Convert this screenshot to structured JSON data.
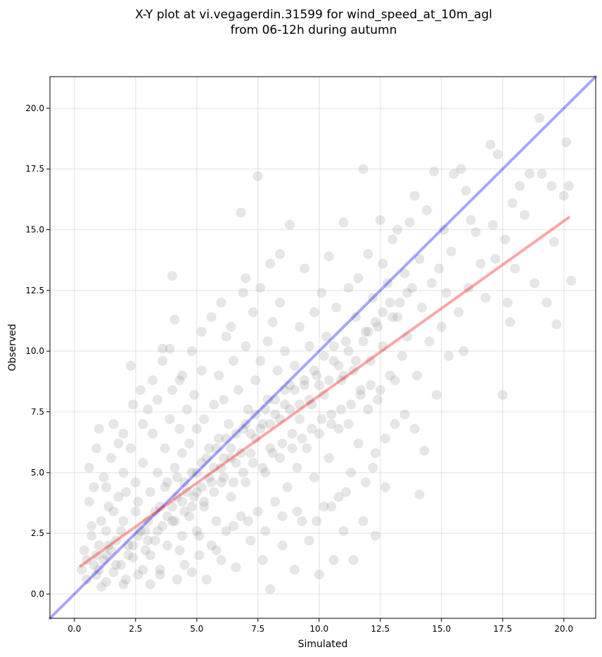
{
  "chart_data": {
    "type": "scatter",
    "title_line1": "X-Y plot at vi.vegagerdin.31599 for wind_speed_at_10m_agl",
    "title_line2": "from 06-12h during autumn",
    "xlabel": "Simulated",
    "ylabel": "Observed",
    "xlim": [
      -1.0,
      21.3
    ],
    "ylim": [
      -1.0,
      21.3
    ],
    "xticks": [
      0.0,
      2.5,
      5.0,
      7.5,
      10.0,
      12.5,
      15.0,
      17.5,
      20.0
    ],
    "yticks": [
      0.0,
      2.5,
      5.0,
      7.5,
      10.0,
      12.5,
      15.0,
      17.5,
      20.0
    ],
    "xtick_labels": [
      "0.0",
      "2.5",
      "5.0",
      "7.5",
      "10.0",
      "12.5",
      "15.0",
      "17.5",
      "20.0"
    ],
    "ytick_labels": [
      "0.0",
      "2.5",
      "5.0",
      "7.5",
      "10.0",
      "12.5",
      "15.0",
      "17.5",
      "20.0"
    ],
    "grid": true,
    "point_color": "#808080",
    "point_alpha": 0.2,
    "identity_line": {
      "color": "#0000ff",
      "alpha": 0.35,
      "from": [
        -1.0,
        -1.0
      ],
      "to": [
        21.3,
        21.3
      ]
    },
    "fit_line": {
      "color": "#ff0000",
      "alpha": 0.35,
      "from": [
        0.25,
        1.15
      ],
      "to": [
        20.2,
        15.5
      ]
    },
    "points": [
      [
        0.3,
        1.0
      ],
      [
        0.4,
        1.8
      ],
      [
        0.5,
        0.6
      ],
      [
        0.6,
        3.8
      ],
      [
        0.7,
        2.4
      ],
      [
        0.8,
        1.2
      ],
      [
        0.8,
        4.4
      ],
      [
        0.9,
        0.8
      ],
      [
        1.0,
        2.0
      ],
      [
        1.0,
        6.8
      ],
      [
        1.1,
        3.0
      ],
      [
        1.2,
        1.4
      ],
      [
        1.2,
        4.8
      ],
      [
        1.3,
        0.5
      ],
      [
        1.3,
        2.6
      ],
      [
        1.4,
        3.6
      ],
      [
        1.5,
        1.8
      ],
      [
        1.5,
        5.6
      ],
      [
        1.6,
        0.9
      ],
      [
        1.7,
        2.2
      ],
      [
        1.8,
        4.0
      ],
      [
        1.8,
        6.2
      ],
      [
        1.9,
        1.2
      ],
      [
        2.0,
        3.0
      ],
      [
        2.0,
        5.0
      ],
      [
        2.1,
        0.6
      ],
      [
        2.2,
        2.0
      ],
      [
        2.3,
        6.0
      ],
      [
        2.3,
        9.4
      ],
      [
        2.4,
        1.5
      ],
      [
        2.5,
        3.4
      ],
      [
        2.5,
        4.6
      ],
      [
        2.6,
        0.8
      ],
      [
        2.7,
        2.6
      ],
      [
        2.7,
        8.4
      ],
      [
        2.8,
        5.4
      ],
      [
        2.9,
        1.8
      ],
      [
        3.0,
        3.0
      ],
      [
        3.0,
        7.6
      ],
      [
        3.1,
        0.4
      ],
      [
        3.1,
        4.2
      ],
      [
        3.2,
        6.6
      ],
      [
        3.3,
        2.2
      ],
      [
        3.4,
        5.0
      ],
      [
        3.4,
        8.0
      ],
      [
        3.5,
        1.0
      ],
      [
        3.5,
        3.6
      ],
      [
        3.6,
        10.1
      ],
      [
        3.7,
        4.4
      ],
      [
        3.7,
        6.0
      ],
      [
        3.8,
        2.0
      ],
      [
        3.9,
        7.2
      ],
      [
        3.9,
        10.1
      ],
      [
        4.0,
        13.1
      ],
      [
        4.0,
        3.0
      ],
      [
        4.1,
        5.2
      ],
      [
        4.1,
        11.3
      ],
      [
        4.2,
        0.6
      ],
      [
        4.2,
        4.0
      ],
      [
        4.3,
        6.8
      ],
      [
        4.3,
        8.8
      ],
      [
        4.4,
        2.4
      ],
      [
        4.4,
        5.8
      ],
      [
        4.5,
        1.2
      ],
      [
        4.5,
        4.6
      ],
      [
        4.6,
        7.6
      ],
      [
        4.7,
        3.2
      ],
      [
        4.7,
        6.2
      ],
      [
        4.8,
        0.9
      ],
      [
        4.8,
        5.0
      ],
      [
        4.9,
        8.2
      ],
      [
        5.0,
        2.6
      ],
      [
        5.0,
        4.2
      ],
      [
        5.0,
        6.8
      ],
      [
        5.1,
        1.6
      ],
      [
        5.2,
        5.4
      ],
      [
        5.2,
        9.2
      ],
      [
        5.3,
        3.6
      ],
      [
        5.3,
        7.2
      ],
      [
        5.4,
        0.6
      ],
      [
        5.5,
        4.8
      ],
      [
        5.5,
        6.0
      ],
      [
        5.6,
        2.0
      ],
      [
        5.7,
        7.8
      ],
      [
        5.7,
        5.2
      ],
      [
        5.8,
        3.0
      ],
      [
        5.9,
        9.0
      ],
      [
        5.9,
        6.4
      ],
      [
        6.0,
        1.4
      ],
      [
        6.0,
        4.6
      ],
      [
        6.1,
        8.0
      ],
      [
        6.1,
        5.6
      ],
      [
        6.2,
        10.6
      ],
      [
        6.2,
        2.6
      ],
      [
        6.3,
        7.0
      ],
      [
        6.4,
        4.0
      ],
      [
        6.4,
        6.0
      ],
      [
        6.5,
        9.6
      ],
      [
        6.6,
        1.1
      ],
      [
        6.6,
        5.4
      ],
      [
        6.7,
        8.4
      ],
      [
        6.8,
        3.2
      ],
      [
        6.8,
        15.7
      ],
      [
        6.9,
        6.8
      ],
      [
        6.9,
        12.4
      ],
      [
        7.0,
        4.6
      ],
      [
        7.0,
        10.2
      ],
      [
        7.1,
        7.6
      ],
      [
        7.2,
        2.2
      ],
      [
        7.2,
        5.8
      ],
      [
        7.3,
        11.6
      ],
      [
        7.4,
        8.8
      ],
      [
        7.4,
        6.4
      ],
      [
        7.5,
        3.4
      ],
      [
        7.5,
        17.2
      ],
      [
        7.6,
        9.6
      ],
      [
        7.7,
        7.0
      ],
      [
        7.7,
        1.4
      ],
      [
        7.8,
        5.0
      ],
      [
        7.9,
        10.4
      ],
      [
        7.9,
        8.0
      ],
      [
        8.0,
        0.2
      ],
      [
        8.0,
        6.0
      ],
      [
        8.1,
        11.2
      ],
      [
        8.2,
        3.8
      ],
      [
        8.2,
        7.4
      ],
      [
        8.3,
        9.2
      ],
      [
        8.4,
        5.6
      ],
      [
        8.4,
        12.0
      ],
      [
        8.5,
        2.0
      ],
      [
        8.6,
        7.8
      ],
      [
        8.6,
        10.0
      ],
      [
        8.7,
        4.4
      ],
      [
        8.8,
        8.6
      ],
      [
        8.8,
        15.2
      ],
      [
        8.9,
        6.6
      ],
      [
        9.0,
        1.0
      ],
      [
        9.0,
        9.4
      ],
      [
        9.1,
        5.2
      ],
      [
        9.2,
        11.0
      ],
      [
        9.2,
        7.2
      ],
      [
        9.3,
        3.0
      ],
      [
        9.4,
        8.8
      ],
      [
        9.4,
        13.4
      ],
      [
        9.5,
        6.0
      ],
      [
        9.6,
        10.2
      ],
      [
        9.6,
        2.2
      ],
      [
        9.7,
        7.8
      ],
      [
        9.8,
        11.6
      ],
      [
        9.8,
        4.8
      ],
      [
        9.9,
        9.0
      ],
      [
        10.0,
        0.8
      ],
      [
        10.0,
        6.6
      ],
      [
        10.1,
        12.4
      ],
      [
        10.2,
        8.2
      ],
      [
        10.2,
        3.6
      ],
      [
        10.3,
        10.6
      ],
      [
        10.4,
        5.6
      ],
      [
        10.4,
        13.9
      ],
      [
        10.5,
        7.4
      ],
      [
        10.6,
        1.4
      ],
      [
        10.6,
        9.6
      ],
      [
        10.7,
        11.8
      ],
      [
        10.8,
        4.0
      ],
      [
        10.8,
        6.8
      ],
      [
        10.9,
        8.8
      ],
      [
        11.0,
        15.3
      ],
      [
        11.0,
        2.6
      ],
      [
        11.1,
        10.4
      ],
      [
        11.2,
        7.0
      ],
      [
        11.2,
        12.6
      ],
      [
        11.3,
        5.0
      ],
      [
        11.4,
        9.2
      ],
      [
        11.4,
        1.4
      ],
      [
        11.5,
        11.4
      ],
      [
        11.6,
        6.2
      ],
      [
        11.6,
        13.0
      ],
      [
        11.7,
        8.4
      ],
      [
        11.8,
        17.5
      ],
      [
        11.8,
        3.0
      ],
      [
        11.9,
        10.8
      ],
      [
        12.0,
        7.6
      ],
      [
        12.0,
        14.0
      ],
      [
        12.1,
        9.6
      ],
      [
        12.2,
        5.2
      ],
      [
        12.2,
        12.2
      ],
      [
        12.3,
        2.4
      ],
      [
        12.4,
        11.0
      ],
      [
        12.4,
        8.0
      ],
      [
        12.5,
        15.4
      ],
      [
        12.6,
        13.6
      ],
      [
        12.6,
        10.2
      ],
      [
        12.7,
        4.4
      ],
      [
        12.8,
        12.8
      ],
      [
        12.9,
        9.0
      ],
      [
        13.0,
        14.6
      ],
      [
        13.0,
        11.4
      ],
      [
        13.1,
        8.8
      ],
      [
        13.2,
        15.0
      ],
      [
        13.3,
        12.0
      ],
      [
        13.4,
        9.8
      ],
      [
        13.5,
        13.2
      ],
      [
        13.6,
        10.6
      ],
      [
        13.7,
        15.3
      ],
      [
        13.8,
        12.6
      ],
      [
        13.9,
        16.4
      ],
      [
        14.0,
        9.0
      ],
      [
        14.1,
        4.1
      ],
      [
        14.1,
        13.8
      ],
      [
        14.2,
        11.8
      ],
      [
        14.3,
        5.9
      ],
      [
        14.4,
        15.8
      ],
      [
        14.5,
        10.4
      ],
      [
        14.6,
        12.8
      ],
      [
        14.7,
        17.4
      ],
      [
        14.8,
        8.2
      ],
      [
        14.9,
        13.4
      ],
      [
        15.0,
        11.0
      ],
      [
        15.1,
        15.0
      ],
      [
        15.2,
        12.4
      ],
      [
        15.3,
        9.8
      ],
      [
        15.4,
        14.1
      ],
      [
        15.5,
        17.3
      ],
      [
        15.7,
        11.6
      ],
      [
        15.8,
        17.5
      ],
      [
        15.9,
        10.0
      ],
      [
        16.0,
        16.6
      ],
      [
        16.1,
        12.6
      ],
      [
        16.2,
        15.4
      ],
      [
        16.4,
        14.9
      ],
      [
        16.6,
        13.6
      ],
      [
        16.8,
        12.2
      ],
      [
        17.0,
        18.5
      ],
      [
        17.1,
        15.2
      ],
      [
        17.2,
        13.8
      ],
      [
        17.3,
        18.1
      ],
      [
        17.5,
        8.2
      ],
      [
        17.6,
        14.6
      ],
      [
        17.7,
        12.0
      ],
      [
        17.8,
        11.2
      ],
      [
        17.9,
        16.1
      ],
      [
        18.0,
        13.4
      ],
      [
        18.2,
        16.8
      ],
      [
        18.4,
        15.6
      ],
      [
        18.6,
        17.3
      ],
      [
        18.8,
        12.8
      ],
      [
        19.0,
        19.6
      ],
      [
        19.1,
        17.3
      ],
      [
        19.3,
        12.0
      ],
      [
        19.5,
        16.8
      ],
      [
        19.6,
        14.5
      ],
      [
        19.7,
        11.1
      ],
      [
        20.0,
        16.4
      ],
      [
        20.1,
        18.6
      ],
      [
        20.2,
        16.8
      ],
      [
        20.3,
        12.9
      ],
      [
        0.5,
        1.4
      ],
      [
        0.7,
        2.8
      ],
      [
        0.9,
        1.6
      ],
      [
        1.1,
        0.3
      ],
      [
        1.4,
        2.0
      ],
      [
        1.6,
        3.4
      ],
      [
        1.9,
        2.6
      ],
      [
        2.1,
        4.2
      ],
      [
        2.4,
        2.0
      ],
      [
        2.6,
        3.8
      ],
      [
        2.9,
        2.6
      ],
      [
        3.1,
        1.6
      ],
      [
        3.3,
        3.4
      ],
      [
        3.6,
        2.8
      ],
      [
        3.8,
        4.6
      ],
      [
        4.0,
        3.6
      ],
      [
        4.2,
        4.8
      ],
      [
        4.4,
        3.8
      ],
      [
        4.6,
        4.2
      ],
      [
        4.8,
        3.6
      ],
      [
        5.0,
        5.0
      ],
      [
        5.2,
        4.4
      ],
      [
        5.4,
        5.6
      ],
      [
        5.6,
        4.6
      ],
      [
        5.8,
        6.0
      ],
      [
        6.0,
        5.2
      ],
      [
        6.2,
        6.4
      ],
      [
        6.4,
        5.6
      ],
      [
        6.6,
        6.6
      ],
      [
        6.8,
        5.8
      ],
      [
        7.0,
        7.0
      ],
      [
        7.2,
        6.6
      ],
      [
        7.4,
        7.4
      ],
      [
        7.6,
        6.8
      ],
      [
        7.8,
        7.6
      ],
      [
        8.0,
        7.0
      ],
      [
        8.2,
        8.0
      ],
      [
        8.4,
        7.2
      ],
      [
        8.6,
        8.4
      ],
      [
        8.8,
        7.6
      ],
      [
        9.0,
        8.4
      ],
      [
        9.2,
        7.8
      ],
      [
        9.4,
        8.6
      ],
      [
        9.6,
        8.0
      ],
      [
        9.8,
        9.2
      ],
      [
        10.0,
        8.6
      ],
      [
        10.2,
        9.8
      ],
      [
        10.4,
        8.8
      ],
      [
        10.6,
        10.2
      ],
      [
        10.8,
        9.4
      ],
      [
        11.0,
        9.0
      ],
      [
        11.2,
        10.0
      ],
      [
        11.5,
        9.6
      ],
      [
        11.8,
        10.4
      ],
      [
        12.0,
        10.8
      ],
      [
        12.3,
        11.2
      ],
      [
        12.6,
        11.6
      ],
      [
        12.9,
        12.0
      ],
      [
        13.2,
        11.4
      ],
      [
        13.6,
        12.4
      ],
      [
        1.0,
        1.0
      ],
      [
        1.3,
        1.6
      ],
      [
        1.7,
        1.2
      ],
      [
        2.2,
        1.6
      ],
      [
        2.6,
        2.4
      ],
      [
        3.0,
        2.2
      ],
      [
        3.4,
        2.6
      ],
      [
        3.8,
        3.2
      ],
      [
        4.1,
        3.0
      ],
      [
        4.5,
        3.4
      ],
      [
        4.9,
        4.0
      ],
      [
        5.3,
        3.8
      ],
      [
        5.7,
        4.2
      ],
      [
        6.1,
        4.8
      ],
      [
        6.5,
        4.6
      ],
      [
        6.9,
        5.0
      ],
      [
        7.3,
        5.4
      ],
      [
        7.7,
        5.2
      ],
      [
        8.1,
        5.8
      ],
      [
        8.5,
        6.2
      ],
      [
        8.9,
        6.0
      ],
      [
        9.3,
        6.4
      ],
      [
        9.7,
        6.8
      ],
      [
        10.1,
        7.2
      ],
      [
        10.5,
        7.0
      ],
      [
        10.9,
        7.6
      ],
      [
        11.3,
        7.8
      ],
      [
        11.7,
        8.2
      ],
      [
        12.1,
        8.6
      ],
      [
        12.5,
        8.4
      ],
      [
        2.0,
        0.4
      ],
      [
        2.8,
        1.0
      ],
      [
        3.5,
        0.8
      ],
      [
        4.3,
        1.8
      ],
      [
        5.1,
        2.4
      ],
      [
        5.8,
        1.8
      ],
      [
        6.5,
        2.8
      ],
      [
        7.1,
        3.0
      ],
      [
        7.8,
        2.6
      ],
      [
        8.5,
        3.2
      ],
      [
        9.1,
        3.4
      ],
      [
        9.9,
        3.0
      ],
      [
        10.5,
        3.6
      ],
      [
        11.1,
        4.2
      ],
      [
        11.9,
        4.6
      ],
      [
        12.3,
        5.8
      ],
      [
        12.7,
        6.4
      ],
      [
        13.1,
        7.0
      ],
      [
        13.5,
        7.4
      ],
      [
        13.9,
        6.8
      ],
      [
        0.6,
        5.2
      ],
      [
        0.9,
        6.0
      ],
      [
        1.3,
        4.4
      ],
      [
        1.6,
        7.0
      ],
      [
        2.0,
        6.6
      ],
      [
        2.4,
        7.8
      ],
      [
        2.8,
        7.0
      ],
      [
        3.2,
        8.8
      ],
      [
        3.6,
        9.6
      ],
      [
        4.0,
        8.4
      ],
      [
        4.4,
        9.0
      ],
      [
        4.8,
        10.0
      ],
      [
        5.2,
        10.8
      ],
      [
        5.6,
        11.4
      ],
      [
        6.0,
        12.0
      ],
      [
        6.4,
        11.0
      ],
      [
        7.0,
        13.0
      ],
      [
        7.6,
        12.6
      ],
      [
        8.0,
        13.6
      ],
      [
        8.4,
        14.0
      ]
    ]
  }
}
